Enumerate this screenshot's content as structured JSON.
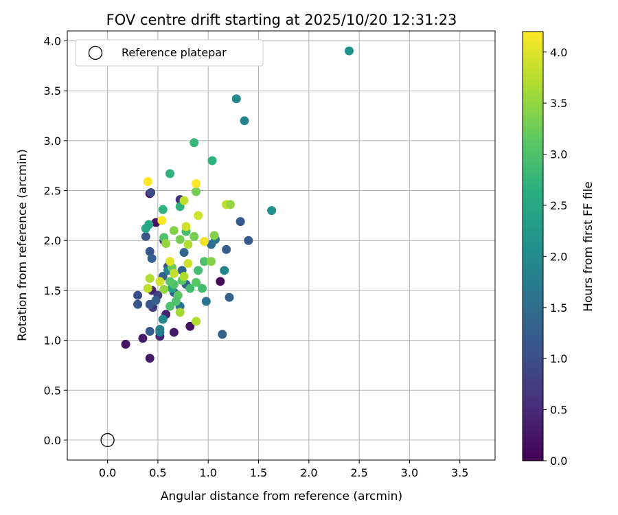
{
  "chart_data": {
    "type": "scatter",
    "title": "FOV centre drift starting at 2025/10/20 12:31:23",
    "xlabel": "Angular distance from reference (arcmin)",
    "ylabel": "Rotation from reference (arcmin)",
    "xlim": [
      -0.4,
      3.85
    ],
    "ylim": [
      -0.2,
      4.1
    ],
    "xticks": [
      "0.0",
      "0.5",
      "1.0",
      "1.5",
      "2.0",
      "2.5",
      "3.0",
      "3.5"
    ],
    "xtick_values": [
      0,
      0.5,
      1,
      1.5,
      2,
      2.5,
      3,
      3.5
    ],
    "yticks": [
      "0.0",
      "0.5",
      "1.0",
      "1.5",
      "2.0",
      "2.5",
      "3.0",
      "3.5",
      "4.0"
    ],
    "ytick_values": [
      0,
      0.5,
      1,
      1.5,
      2,
      2.5,
      3,
      3.5,
      4
    ],
    "grid": true,
    "legend": {
      "placement": "top-left",
      "label": "Reference platepar"
    },
    "reference_point": {
      "x": 0.0,
      "y": 0.0
    },
    "colorbar": {
      "label": "Hours from first FF file",
      "range": [
        0,
        4.2
      ],
      "ticks": [
        "0.0",
        "0.5",
        "1.0",
        "1.5",
        "2.0",
        "2.5",
        "3.0",
        "3.5",
        "4.0"
      ],
      "tick_values": [
        0,
        0.5,
        1,
        1.5,
        2,
        2.5,
        3,
        3.5,
        4
      ],
      "colormap": "viridis"
    },
    "points": [
      {
        "x": 0.18,
        "y": 0.96,
        "h": 0.2
      },
      {
        "x": 0.35,
        "y": 1.02,
        "h": 0.3
      },
      {
        "x": 0.42,
        "y": 0.82,
        "h": 0.3
      },
      {
        "x": 0.52,
        "y": 1.04,
        "h": 0.4
      },
      {
        "x": 0.66,
        "y": 1.08,
        "h": 0.3
      },
      {
        "x": 0.82,
        "y": 1.14,
        "h": 0.2
      },
      {
        "x": 1.12,
        "y": 1.59,
        "h": 0.1
      },
      {
        "x": 0.42,
        "y": 2.47,
        "h": 0.1
      },
      {
        "x": 0.48,
        "y": 2.18,
        "h": 0.2
      },
      {
        "x": 0.44,
        "y": 1.5,
        "h": 0.4
      },
      {
        "x": 0.58,
        "y": 1.26,
        "h": 0.4
      },
      {
        "x": 0.56,
        "y": 2.0,
        "h": 0.5
      },
      {
        "x": 0.72,
        "y": 2.41,
        "h": 0.6
      },
      {
        "x": 0.45,
        "y": 1.33,
        "h": 0.7
      },
      {
        "x": 0.5,
        "y": 1.45,
        "h": 0.8
      },
      {
        "x": 0.3,
        "y": 1.45,
        "h": 1.0
      },
      {
        "x": 0.3,
        "y": 1.36,
        "h": 1.1
      },
      {
        "x": 0.42,
        "y": 1.36,
        "h": 1.1
      },
      {
        "x": 0.42,
        "y": 1.09,
        "h": 1.2
      },
      {
        "x": 0.42,
        "y": 1.89,
        "h": 1.1
      },
      {
        "x": 0.38,
        "y": 2.04,
        "h": 1.1
      },
      {
        "x": 0.44,
        "y": 1.82,
        "h": 1.3
      },
      {
        "x": 0.43,
        "y": 2.48,
        "h": 1.0
      },
      {
        "x": 0.6,
        "y": 1.74,
        "h": 1.0
      },
      {
        "x": 0.64,
        "y": 1.7,
        "h": 1.2
      },
      {
        "x": 0.55,
        "y": 1.64,
        "h": 1.3
      },
      {
        "x": 0.66,
        "y": 1.48,
        "h": 1.2
      },
      {
        "x": 0.74,
        "y": 1.7,
        "h": 1.4
      },
      {
        "x": 0.72,
        "y": 1.34,
        "h": 1.6
      },
      {
        "x": 0.76,
        "y": 1.88,
        "h": 1.4
      },
      {
        "x": 0.78,
        "y": 1.56,
        "h": 1.3
      },
      {
        "x": 0.48,
        "y": 1.4,
        "h": 1.3
      },
      {
        "x": 0.52,
        "y": 1.08,
        "h": 1.7
      },
      {
        "x": 0.52,
        "y": 1.11,
        "h": 1.8
      },
      {
        "x": 0.55,
        "y": 1.21,
        "h": 1.9
      },
      {
        "x": 1.32,
        "y": 2.19,
        "h": 1.2
      },
      {
        "x": 1.4,
        "y": 2.0,
        "h": 1.2
      },
      {
        "x": 1.18,
        "y": 1.91,
        "h": 1.2
      },
      {
        "x": 1.21,
        "y": 1.43,
        "h": 1.3
      },
      {
        "x": 1.14,
        "y": 1.06,
        "h": 1.3
      },
      {
        "x": 0.98,
        "y": 1.39,
        "h": 1.6
      },
      {
        "x": 1.03,
        "y": 1.96,
        "h": 1.5
      },
      {
        "x": 1.07,
        "y": 2.01,
        "h": 1.7
      },
      {
        "x": 1.16,
        "y": 1.7,
        "h": 1.9
      },
      {
        "x": 1.36,
        "y": 3.2,
        "h": 1.9
      },
      {
        "x": 1.28,
        "y": 3.42,
        "h": 2.0
      },
      {
        "x": 1.63,
        "y": 2.3,
        "h": 2.1
      },
      {
        "x": 2.4,
        "y": 3.9,
        "h": 2.1
      },
      {
        "x": 0.6,
        "y": 1.7,
        "h": 1.8
      },
      {
        "x": 0.64,
        "y": 1.52,
        "h": 2.4
      },
      {
        "x": 0.38,
        "y": 2.12,
        "h": 2.5
      },
      {
        "x": 0.41,
        "y": 2.16,
        "h": 2.5
      },
      {
        "x": 0.55,
        "y": 2.31,
        "h": 2.7
      },
      {
        "x": 0.62,
        "y": 2.67,
        "h": 2.7
      },
      {
        "x": 0.86,
        "y": 2.98,
        "h": 2.8
      },
      {
        "x": 1.04,
        "y": 2.8,
        "h": 2.7
      },
      {
        "x": 0.72,
        "y": 2.34,
        "h": 2.7
      },
      {
        "x": 0.78,
        "y": 2.09,
        "h": 2.9
      },
      {
        "x": 0.9,
        "y": 1.7,
        "h": 2.9
      },
      {
        "x": 0.94,
        "y": 1.52,
        "h": 2.9
      },
      {
        "x": 0.82,
        "y": 1.52,
        "h": 2.9
      },
      {
        "x": 0.96,
        "y": 1.79,
        "h": 3.0
      },
      {
        "x": 0.88,
        "y": 1.58,
        "h": 3.1
      },
      {
        "x": 0.74,
        "y": 1.6,
        "h": 3.1
      },
      {
        "x": 0.66,
        "y": 1.56,
        "h": 3.0
      },
      {
        "x": 0.56,
        "y": 2.03,
        "h": 3.0
      },
      {
        "x": 0.62,
        "y": 1.59,
        "h": 3.1
      },
      {
        "x": 0.64,
        "y": 1.73,
        "h": 3.2
      },
      {
        "x": 0.72,
        "y": 2.01,
        "h": 3.3
      },
      {
        "x": 0.86,
        "y": 2.04,
        "h": 3.3
      },
      {
        "x": 0.88,
        "y": 2.49,
        "h": 3.3
      },
      {
        "x": 1.03,
        "y": 1.79,
        "h": 3.4
      },
      {
        "x": 1.06,
        "y": 2.05,
        "h": 3.4
      },
      {
        "x": 0.66,
        "y": 2.1,
        "h": 3.4
      },
      {
        "x": 0.58,
        "y": 1.97,
        "h": 3.5
      },
      {
        "x": 0.56,
        "y": 1.51,
        "h": 3.5
      },
      {
        "x": 0.72,
        "y": 1.28,
        "h": 3.6
      },
      {
        "x": 0.7,
        "y": 1.45,
        "h": 3.1
      },
      {
        "x": 0.62,
        "y": 1.34,
        "h": 3.0
      },
      {
        "x": 0.68,
        "y": 1.39,
        "h": 3.0
      },
      {
        "x": 0.76,
        "y": 1.64,
        "h": 3.7
      },
      {
        "x": 0.8,
        "y": 1.96,
        "h": 3.7
      },
      {
        "x": 0.78,
        "y": 2.14,
        "h": 3.9
      },
      {
        "x": 0.76,
        "y": 2.4,
        "h": 3.8
      },
      {
        "x": 0.9,
        "y": 2.25,
        "h": 3.9
      },
      {
        "x": 0.96,
        "y": 1.99,
        "h": 4.1
      },
      {
        "x": 0.66,
        "y": 1.67,
        "h": 3.8
      },
      {
        "x": 0.8,
        "y": 1.77,
        "h": 3.9
      },
      {
        "x": 0.62,
        "y": 1.79,
        "h": 4.0
      },
      {
        "x": 0.52,
        "y": 1.59,
        "h": 3.9
      },
      {
        "x": 0.42,
        "y": 1.62,
        "h": 3.7
      },
      {
        "x": 0.4,
        "y": 1.52,
        "h": 3.8
      },
      {
        "x": 0.54,
        "y": 2.2,
        "h": 4.2
      },
      {
        "x": 0.4,
        "y": 2.59,
        "h": 4.2
      },
      {
        "x": 0.88,
        "y": 2.57,
        "h": 4.2
      },
      {
        "x": 1.18,
        "y": 2.36,
        "h": 3.8
      },
      {
        "x": 1.22,
        "y": 2.36,
        "h": 3.5
      },
      {
        "x": 0.88,
        "y": 1.19,
        "h": 3.7
      }
    ]
  }
}
